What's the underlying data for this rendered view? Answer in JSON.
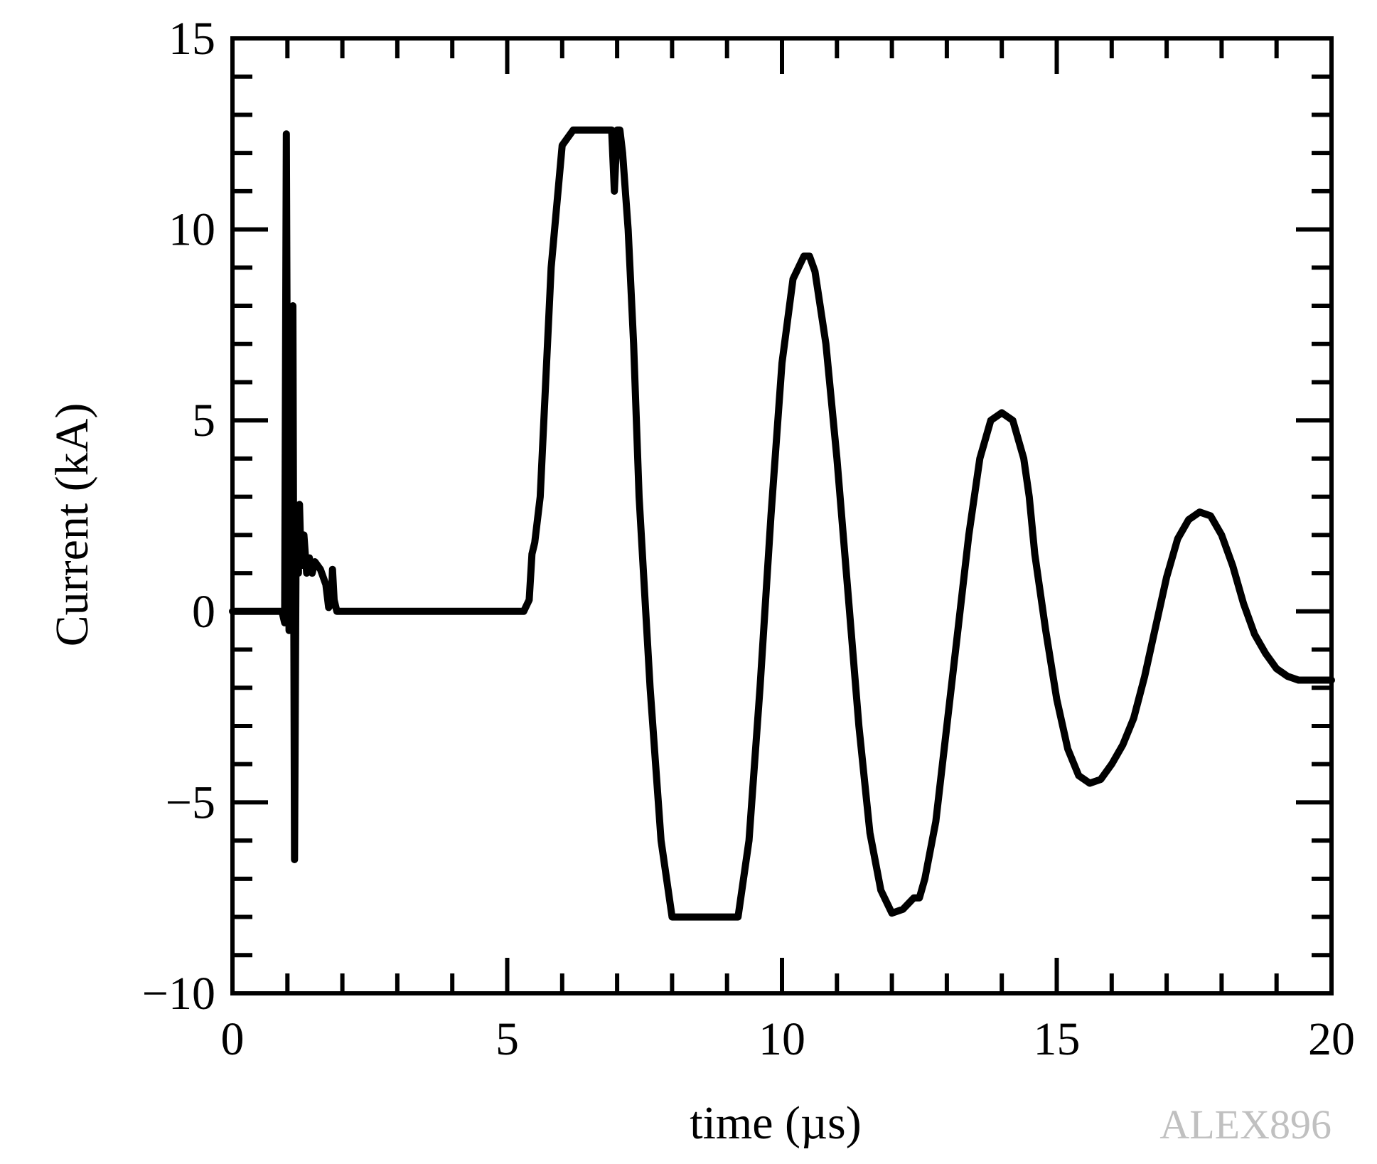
{
  "chart_data": {
    "type": "line",
    "xlabel": "time (µs)",
    "ylabel": "Current (kA)",
    "xlim": [
      0,
      20
    ],
    "ylim": [
      -10,
      15
    ],
    "x_ticks": [
      "0",
      "5",
      "10",
      "15",
      "20"
    ],
    "y_ticks": [
      "−10",
      "−5",
      "0",
      "5",
      "10",
      "15"
    ],
    "x_tick_values": [
      0,
      5,
      10,
      15,
      20
    ],
    "y_tick_values": [
      -10,
      -5,
      0,
      5,
      10,
      15
    ],
    "grid": false,
    "line_color": "#000000",
    "series": [
      {
        "x": [
          0,
          0.9,
          0.95,
          0.98,
          1.0,
          1.03,
          1.06,
          1.1,
          1.13,
          1.16,
          1.2,
          1.22,
          1.25,
          1.3,
          1.35,
          1.4,
          1.45,
          1.5,
          1.6,
          1.7,
          1.75,
          1.8,
          1.82,
          1.85,
          1.9,
          1.95,
          2.0,
          2.5,
          3.0,
          3.5,
          4.0,
          4.5,
          5.0,
          5.3,
          5.4,
          5.45,
          5.5,
          5.6,
          5.7,
          5.8,
          6.0,
          6.2,
          6.3,
          6.8,
          6.9,
          6.95,
          7.0,
          7.05,
          7.1,
          7.2,
          7.3,
          7.4,
          7.6,
          7.8,
          8.0,
          8.1,
          9.2,
          9.4,
          9.6,
          9.8,
          10.0,
          10.2,
          10.4,
          10.5,
          10.6,
          10.8,
          11.0,
          11.2,
          11.4,
          11.6,
          11.8,
          12.0,
          12.2,
          12.4,
          12.5,
          12.6,
          12.8,
          13.0,
          13.2,
          13.4,
          13.6,
          13.8,
          14.0,
          14.2,
          14.4,
          14.5,
          14.6,
          14.8,
          15.0,
          15.2,
          15.4,
          15.6,
          15.8,
          16.0,
          16.2,
          16.4,
          16.6,
          16.8,
          17.0,
          17.2,
          17.4,
          17.6,
          17.8,
          18.0,
          18.2,
          18.4,
          18.6,
          18.8,
          19.0,
          19.2,
          19.4,
          19.6,
          19.8,
          20.0
        ],
        "y": [
          0,
          0,
          -0.3,
          12.5,
          5.0,
          -0.5,
          6.5,
          8.0,
          -6.5,
          2.5,
          1.0,
          2.8,
          1.2,
          2.0,
          1.0,
          1.4,
          1.0,
          1.3,
          1.1,
          0.7,
          0.1,
          0.2,
          1.1,
          0.3,
          0.0,
          0.0,
          0.0,
          0.0,
          0.0,
          0.0,
          0.0,
          0.0,
          0.0,
          0.0,
          0.3,
          1.5,
          1.8,
          3.0,
          6.0,
          9.0,
          12.2,
          12.6,
          12.6,
          12.6,
          12.6,
          11.0,
          12.6,
          12.6,
          12.0,
          10.0,
          7.0,
          3.0,
          -2.0,
          -6.0,
          -8.0,
          -8.0,
          -8.0,
          -6.0,
          -2.0,
          2.5,
          6.5,
          8.7,
          9.3,
          9.3,
          8.9,
          7.0,
          4.0,
          0.5,
          -3.0,
          -5.8,
          -7.3,
          -7.9,
          -7.8,
          -7.5,
          -7.5,
          -7.0,
          -5.5,
          -3.0,
          -0.5,
          2.0,
          4.0,
          5.0,
          5.2,
          5.0,
          4.0,
          3.0,
          1.5,
          -0.5,
          -2.3,
          -3.6,
          -4.3,
          -4.5,
          -4.4,
          -4.0,
          -3.5,
          -2.8,
          -1.7,
          -0.4,
          0.9,
          1.9,
          2.4,
          2.6,
          2.5,
          2.0,
          1.2,
          0.2,
          -0.6,
          -1.1,
          -1.5,
          -1.7,
          -1.8,
          -1.8,
          -1.8,
          -1.8
        ]
      }
    ]
  },
  "watermark": "ALEX896"
}
